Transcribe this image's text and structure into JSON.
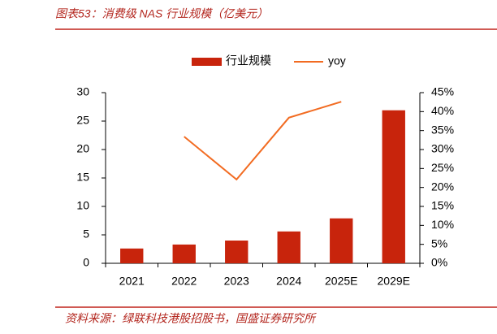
{
  "chart_data": {
    "type": "bar_line",
    "title": "图表53：消费级 NAS 行业规模（亿美元）",
    "source": "资料来源：绿联科技港股招股书，国盛证券研究所",
    "categories": [
      "2021",
      "2022",
      "2023",
      "2024",
      "2025E",
      "2029E"
    ],
    "series": [
      {
        "name": "行业规模",
        "type": "bar",
        "color": "#c8240c",
        "values": [
          2.6,
          3.3,
          4.0,
          5.6,
          7.9,
          26.9
        ]
      },
      {
        "name": "yoy",
        "type": "line",
        "axis": "y2",
        "color": "#f26b21",
        "values": [
          null,
          33.4,
          22.1,
          38.4,
          42.6,
          null
        ]
      }
    ],
    "ylim": [
      0,
      30
    ],
    "yticks": [
      0,
      5,
      10,
      15,
      20,
      25,
      30
    ],
    "y2lim": [
      0,
      45
    ],
    "y2ticks": [
      {
        "value": 0,
        "label": "0%"
      },
      {
        "value": 5,
        "label": "5%"
      },
      {
        "value": 10,
        "label": "10%"
      },
      {
        "value": 15,
        "label": "15%"
      },
      {
        "value": 20,
        "label": "20%"
      },
      {
        "value": 25,
        "label": "25%"
      },
      {
        "value": 30,
        "label": "30%"
      },
      {
        "value": 35,
        "label": "35%"
      },
      {
        "value": 40,
        "label": "40%"
      },
      {
        "value": 45,
        "label": "45%"
      }
    ],
    "legend": "top"
  }
}
